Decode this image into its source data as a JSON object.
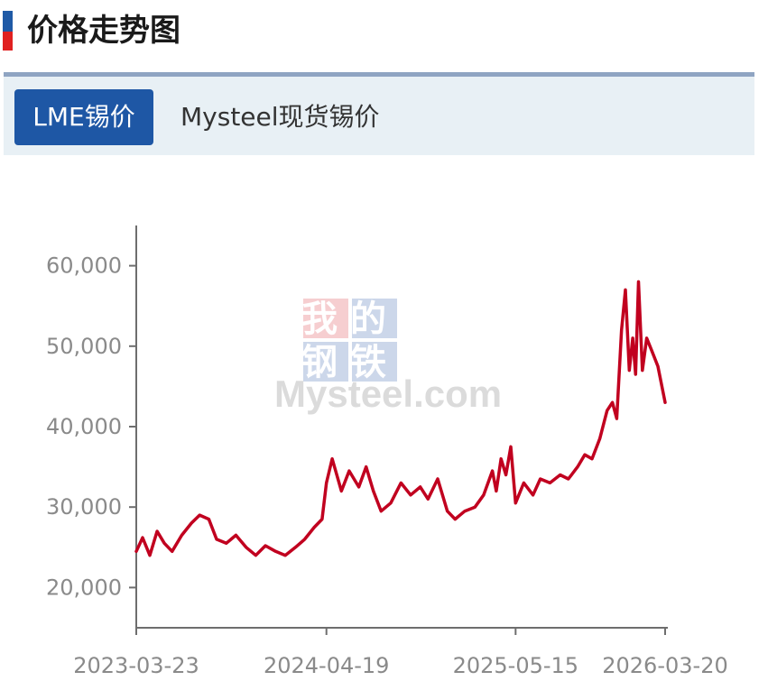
{
  "header": {
    "title": "价格走势图"
  },
  "tabs": [
    {
      "label": "LME锡价",
      "active": true
    },
    {
      "label": "Mysteel现货锡价",
      "active": false
    }
  ],
  "watermark": {
    "line1": "我的",
    "line2": "钢铁",
    "brand": "Mysteel.com"
  },
  "colors": {
    "accent_blue": "#1e57a5",
    "accent_red": "#e02020",
    "line": "#c1001f"
  },
  "chart_data": {
    "type": "line",
    "title": "",
    "xlabel": "",
    "ylabel": "",
    "ylim": [
      15000,
      65000
    ],
    "y_ticks": [
      20000,
      30000,
      40000,
      50000,
      60000
    ],
    "y_tick_labels": [
      "20,000",
      "30,000",
      "40,000",
      "50,000",
      "60,000"
    ],
    "x_tick_labels": [
      "2023-03-23",
      "2024-04-19",
      "2025-05-15",
      "2026-03-20"
    ],
    "x_range": [
      "2023-03-23",
      "2026-03-20"
    ],
    "grid": false,
    "legend": "none",
    "series": [
      {
        "points": [
          [
            "2023-03-23",
            24500
          ],
          [
            "2023-04-05",
            26200
          ],
          [
            "2023-04-20",
            24000
          ],
          [
            "2023-05-05",
            27000
          ],
          [
            "2023-05-20",
            25500
          ],
          [
            "2023-06-05",
            24500
          ],
          [
            "2023-06-25",
            26500
          ],
          [
            "2023-07-15",
            28000
          ],
          [
            "2023-08-01",
            29000
          ],
          [
            "2023-08-20",
            28500
          ],
          [
            "2023-09-05",
            26000
          ],
          [
            "2023-09-25",
            25500
          ],
          [
            "2023-10-15",
            26500
          ],
          [
            "2023-11-05",
            25000
          ],
          [
            "2023-11-25",
            24000
          ],
          [
            "2023-12-15",
            25200
          ],
          [
            "2024-01-05",
            24500
          ],
          [
            "2024-01-25",
            24000
          ],
          [
            "2024-02-15",
            25000
          ],
          [
            "2024-03-05",
            26000
          ],
          [
            "2024-03-25",
            27500
          ],
          [
            "2024-04-10",
            28500
          ],
          [
            "2024-04-19",
            33000
          ],
          [
            "2024-05-01",
            36000
          ],
          [
            "2024-05-20",
            32000
          ],
          [
            "2024-06-05",
            34500
          ],
          [
            "2024-06-25",
            32500
          ],
          [
            "2024-07-10",
            35000
          ],
          [
            "2024-07-25",
            32000
          ],
          [
            "2024-08-10",
            29500
          ],
          [
            "2024-08-30",
            30500
          ],
          [
            "2024-09-20",
            33000
          ],
          [
            "2024-10-10",
            31500
          ],
          [
            "2024-10-30",
            32500
          ],
          [
            "2024-11-15",
            31000
          ],
          [
            "2024-12-05",
            33500
          ],
          [
            "2024-12-25",
            29500
          ],
          [
            "2025-01-10",
            28500
          ],
          [
            "2025-01-30",
            29500
          ],
          [
            "2025-02-20",
            30000
          ],
          [
            "2025-03-10",
            31500
          ],
          [
            "2025-03-28",
            34500
          ],
          [
            "2025-04-05",
            32000
          ],
          [
            "2025-04-15",
            36000
          ],
          [
            "2025-04-25",
            34000
          ],
          [
            "2025-05-05",
            37500
          ],
          [
            "2025-05-15",
            30500
          ],
          [
            "2025-06-01",
            33000
          ],
          [
            "2025-06-20",
            31500
          ],
          [
            "2025-07-05",
            33500
          ],
          [
            "2025-07-25",
            33000
          ],
          [
            "2025-08-15",
            34000
          ],
          [
            "2025-09-01",
            33500
          ],
          [
            "2025-09-20",
            35000
          ],
          [
            "2025-10-05",
            36500
          ],
          [
            "2025-10-20",
            36000
          ],
          [
            "2025-11-05",
            38500
          ],
          [
            "2025-11-20",
            42000
          ],
          [
            "2025-12-01",
            43000
          ],
          [
            "2025-12-10",
            41000
          ],
          [
            "2025-12-20",
            52000
          ],
          [
            "2025-12-28",
            57000
          ],
          [
            "2026-01-05",
            47000
          ],
          [
            "2026-01-12",
            51000
          ],
          [
            "2026-01-18",
            46500
          ],
          [
            "2026-01-24",
            58000
          ],
          [
            "2026-02-01",
            47000
          ],
          [
            "2026-02-10",
            51000
          ],
          [
            "2026-02-20",
            49500
          ],
          [
            "2026-03-05",
            47500
          ],
          [
            "2026-03-20",
            43000
          ]
        ]
      }
    ]
  }
}
